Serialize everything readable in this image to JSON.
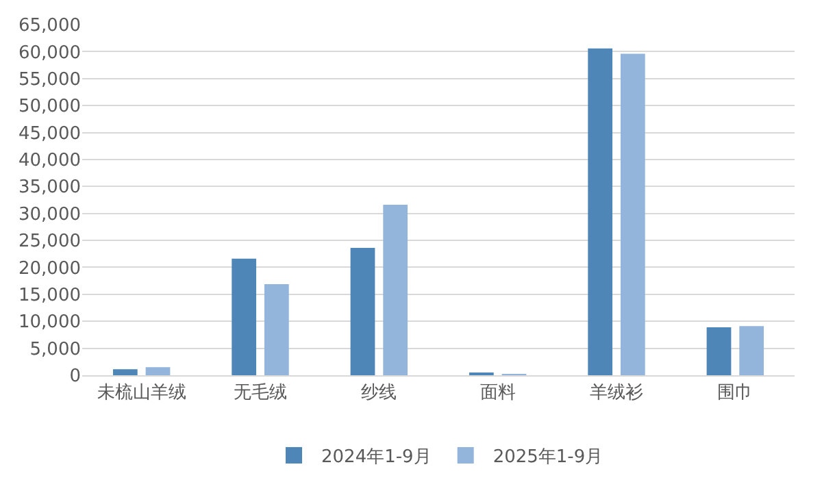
{
  "chart_data": {
    "type": "bar",
    "categories": [
      "未梳山羊绒",
      "无毛绒",
      "纱线",
      "面料",
      "羊绒衫",
      "围巾"
    ],
    "series": [
      {
        "name": "2024年1-9月",
        "color": "#4f86b8",
        "values": [
          1100,
          21600,
          23600,
          300,
          60600,
          8900
        ]
      },
      {
        "name": "2025年1-9月",
        "color": "#93b5dc",
        "values": [
          1500,
          16900,
          31600,
          250,
          59600,
          9100
        ]
      }
    ],
    "ylim": [
      0,
      65000
    ],
    "yticks": [
      {
        "value": 0,
        "label": "0"
      },
      {
        "value": 5000,
        "label": "5,000"
      },
      {
        "value": 10000,
        "label": "10,000"
      },
      {
        "value": 15000,
        "label": "15,000"
      },
      {
        "value": 20000,
        "label": "20,000"
      },
      {
        "value": 25000,
        "label": "25,000"
      },
      {
        "value": 30000,
        "label": "30,000"
      },
      {
        "value": 35000,
        "label": "35,000"
      },
      {
        "value": 40000,
        "label": "40,000"
      },
      {
        "value": 45000,
        "label": "45,000"
      },
      {
        "value": 50000,
        "label": "50,000"
      },
      {
        "value": 55000,
        "label": "55,000"
      },
      {
        "value": 60000,
        "label": "60,000"
      },
      {
        "value": 65000,
        "label": "65,000"
      }
    ],
    "grid": "y",
    "legend": "bottom"
  }
}
